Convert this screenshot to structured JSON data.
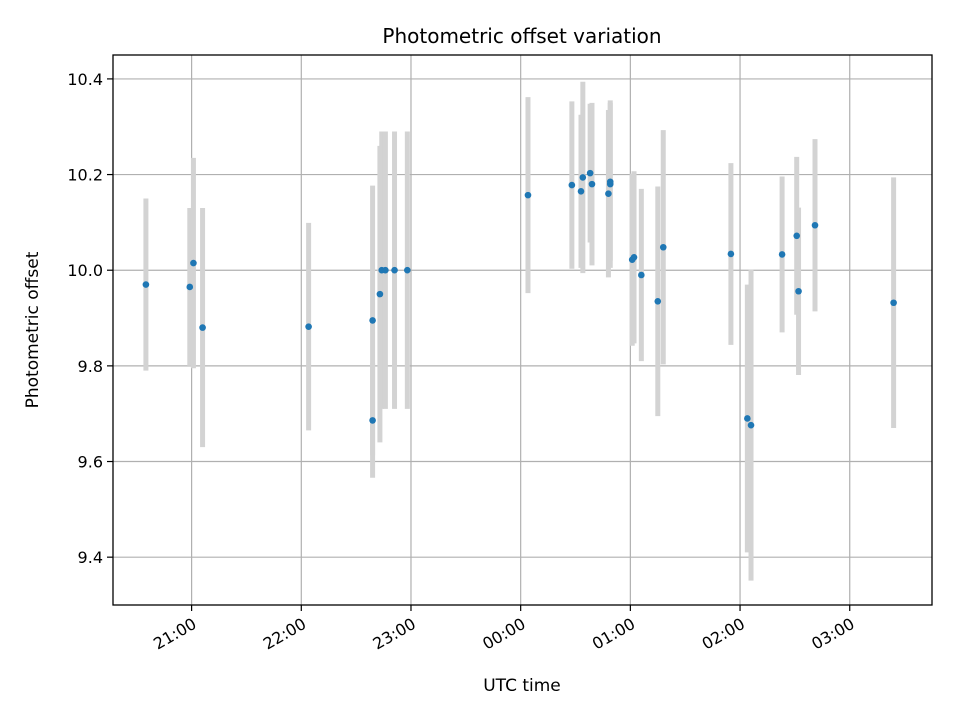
{
  "chart_data": {
    "type": "scatter",
    "title": "Photometric offset variation",
    "xlabel": "UTC time",
    "ylabel": "Photometric offset",
    "x_tick_labels": [
      "21:00",
      "22:00",
      "23:00",
      "00:00",
      "01:00",
      "02:00",
      "03:00"
    ],
    "y_tick_labels": [
      "9.4",
      "9.6",
      "9.8",
      "10.0",
      "10.2",
      "10.4"
    ],
    "y_ticks": [
      9.4,
      9.6,
      9.8,
      10.0,
      10.2,
      10.4
    ],
    "x_ticks": [
      "2000-01-01T21:00",
      "2000-01-01T22:00",
      "2000-01-01T23:00",
      "2000-01-02T00:00",
      "2000-01-02T01:00",
      "2000-01-02T02:00",
      "2000-01-02T03:00"
    ],
    "xlim": [
      "2000-01-01T20:17",
      "2000-01-02T03:45"
    ],
    "ylim": [
      9.3,
      10.45
    ],
    "grid": true,
    "colors": {
      "point": "#1f77b4",
      "errorbar": "#d3d3d3",
      "grid": "#b0b0b0"
    },
    "series": [
      {
        "points": [
          {
            "x": "2000-01-01T20:35",
            "y": 9.97,
            "err": 0.18
          },
          {
            "x": "2000-01-01T20:59",
            "y": 9.965,
            "err": 0.165
          },
          {
            "x": "2000-01-01T21:01",
            "y": 10.015,
            "err": 0.22
          },
          {
            "x": "2000-01-01T21:06",
            "y": 9.88,
            "err": 0.25
          },
          {
            "x": "2000-01-01T22:04",
            "y": 9.882,
            "err": 0.217
          },
          {
            "x": "2000-01-01T22:39",
            "y": 9.895,
            "err": 0.282
          },
          {
            "x": "2000-01-01T22:39",
            "y": 9.686,
            "err": 0.12
          },
          {
            "x": "2000-01-01T22:43",
            "y": 9.95,
            "err": 0.31
          },
          {
            "x": "2000-01-01T22:44",
            "y": 10.0,
            "err": 0.29
          },
          {
            "x": "2000-01-01T22:46",
            "y": 10.0,
            "err": 0.29
          },
          {
            "x": "2000-01-01T22:51",
            "y": 10.0,
            "err": 0.29
          },
          {
            "x": "2000-01-01T22:58",
            "y": 10.0,
            "err": 0.29
          },
          {
            "x": "2000-01-02T00:04",
            "y": 10.157,
            "err": 0.205
          },
          {
            "x": "2000-01-02T00:28",
            "y": 10.178,
            "err": 0.175
          },
          {
            "x": "2000-01-02T00:33",
            "y": 10.165,
            "err": 0.16
          },
          {
            "x": "2000-01-02T00:34",
            "y": 10.194,
            "err": 0.2
          },
          {
            "x": "2000-01-02T00:38",
            "y": 10.203,
            "err": 0.145
          },
          {
            "x": "2000-01-02T00:39",
            "y": 10.18,
            "err": 0.17
          },
          {
            "x": "2000-01-02T00:48",
            "y": 10.16,
            "err": 0.175
          },
          {
            "x": "2000-01-02T00:49",
            "y": 10.18,
            "err": 0.175
          },
          {
            "x": "2000-01-02T00:49",
            "y": 10.185,
            "err": 0.165
          },
          {
            "x": "2000-01-02T01:01",
            "y": 10.022,
            "err": 0.18
          },
          {
            "x": "2000-01-02T01:02",
            "y": 10.027,
            "err": 0.18
          },
          {
            "x": "2000-01-02T01:06",
            "y": 9.99,
            "err": 0.18
          },
          {
            "x": "2000-01-02T01:15",
            "y": 9.935,
            "err": 0.24
          },
          {
            "x": "2000-01-02T01:18",
            "y": 10.048,
            "err": 0.245
          },
          {
            "x": "2000-01-02T01:55",
            "y": 10.034,
            "err": 0.19
          },
          {
            "x": "2000-01-02T02:04",
            "y": 9.69,
            "err": 0.28
          },
          {
            "x": "2000-01-02T02:06",
            "y": 9.676,
            "err": 0.325
          },
          {
            "x": "2000-01-02T02:23",
            "y": 10.033,
            "err": 0.163
          },
          {
            "x": "2000-01-02T02:31",
            "y": 10.072,
            "err": 0.165
          },
          {
            "x": "2000-01-02T02:32",
            "y": 9.956,
            "err": 0.175
          },
          {
            "x": "2000-01-02T02:41",
            "y": 10.094,
            "err": 0.18
          },
          {
            "x": "2000-01-02T03:24",
            "y": 9.932,
            "err": 0.262
          }
        ]
      }
    ]
  }
}
